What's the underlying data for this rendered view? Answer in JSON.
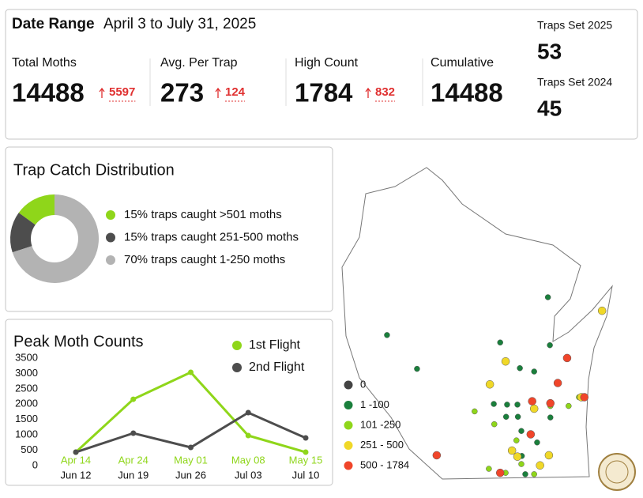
{
  "header": {
    "date_label": "Date Range",
    "date_range": "April 3 to July 31, 2025",
    "stats": [
      {
        "label": "Total Moths",
        "value": 14488,
        "change": 5597
      },
      {
        "label": "Avg. Per Trap",
        "value": 273,
        "change": 124
      },
      {
        "label": "High Count",
        "value": 1784,
        "change": 832
      },
      {
        "label": "Cumulative",
        "value": 14488
      }
    ],
    "traps": [
      {
        "label": "Traps Set 2025",
        "value": 53
      },
      {
        "label": "Traps Set 2024",
        "value": 45
      }
    ]
  },
  "chart_data": [
    {
      "type": "pie",
      "title": "Trap Catch Distribution",
      "categories": [
        "15% traps caught >501 moths",
        "15% traps caught 251-500 moths",
        "70% traps caught 1-250 moths"
      ],
      "values": [
        15,
        15,
        70
      ],
      "colors": [
        "#8fd61a",
        "#4d4d4d",
        "#b3b3b3"
      ],
      "donut": true
    },
    {
      "type": "line",
      "title": "Peak Moth Counts",
      "ylim": [
        0,
        3500
      ],
      "yticks": [
        0,
        500,
        1000,
        1500,
        2000,
        2500,
        3000,
        3500
      ],
      "grid": false,
      "series": [
        {
          "name": "1st Flight",
          "color": "#8fd61a",
          "categories": [
            "Apr 14",
            "Apr 24",
            "May 01",
            "May 08",
            "May 15"
          ],
          "values": [
            437,
            2160,
            3037,
            978,
            437
          ]
        },
        {
          "name": "2nd Flight",
          "color": "#4d4d4d",
          "categories": [
            "Jun 12",
            "Jun 19",
            "Jun 26",
            "Jul 03",
            "Jul 10"
          ],
          "values": [
            437,
            1055,
            592,
            1724,
            900
          ]
        }
      ]
    }
  ],
  "map": {
    "classes": [
      {
        "label": "0",
        "color": "#444444",
        "points": []
      },
      {
        "label": "1 -100",
        "color": "#1a7f3c",
        "points": [
          [
            -88.7,
            45.18
          ],
          [
            -91.97,
            44.62
          ],
          [
            -89.67,
            44.51
          ],
          [
            -91.36,
            44.12
          ],
          [
            -88.66,
            44.47
          ],
          [
            -88.98,
            44.08
          ],
          [
            -89.27,
            44.13
          ],
          [
            -89.8,
            43.6
          ],
          [
            -89.53,
            43.59
          ],
          [
            -89.32,
            43.59
          ],
          [
            -89.55,
            43.41
          ],
          [
            -89.31,
            43.41
          ],
          [
            -89.24,
            43.2
          ],
          [
            -88.92,
            43.03
          ],
          [
            -89.23,
            42.83
          ],
          [
            -89.16,
            42.56
          ],
          [
            -88.65,
            43.4
          ]
        ]
      },
      {
        "label": "101 -250",
        "color": "#8fd61a",
        "points": [
          [
            -90.19,
            43.49
          ],
          [
            -88.65,
            43.57
          ],
          [
            -89.79,
            43.3
          ],
          [
            -89.34,
            43.06
          ],
          [
            -88.28,
            43.57
          ],
          [
            -88.07,
            43.7
          ],
          [
            -89.9,
            42.64
          ],
          [
            -89.56,
            42.58
          ],
          [
            -89.24,
            42.71
          ],
          [
            -88.98,
            42.56
          ]
        ]
      },
      {
        "label": "251 - 500",
        "color": "#f0d828",
        "points": [
          [
            -87.6,
            44.98
          ],
          [
            -89.56,
            44.23
          ],
          [
            -89.88,
            43.89
          ],
          [
            -88.98,
            43.53
          ],
          [
            -89.43,
            42.91
          ],
          [
            -89.32,
            42.82
          ],
          [
            -88.86,
            42.69
          ],
          [
            -88.68,
            42.84
          ],
          [
            -88.02,
            43.7
          ]
        ]
      },
      {
        "label": "500 - 1784",
        "color": "#f0452a",
        "points": [
          [
            -88.31,
            44.28
          ],
          [
            -88.5,
            43.91
          ],
          [
            -89.02,
            43.64
          ],
          [
            -88.65,
            43.61
          ],
          [
            -87.96,
            43.7
          ],
          [
            -89.05,
            43.15
          ],
          [
            -90.96,
            42.84
          ],
          [
            -89.67,
            42.58
          ]
        ]
      }
    ]
  }
}
